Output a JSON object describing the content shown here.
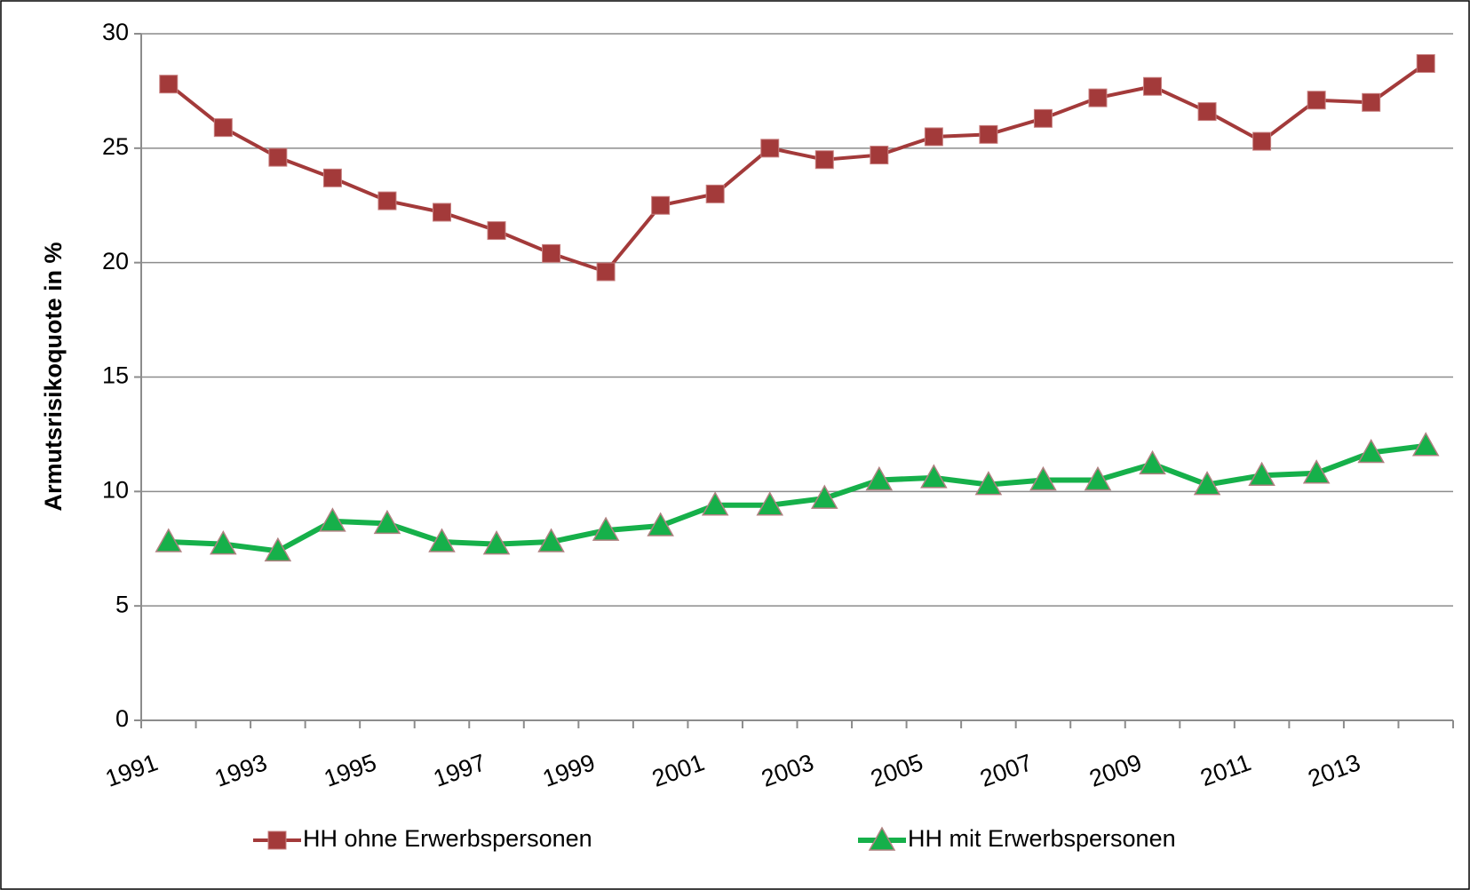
{
  "chart_data": {
    "type": "line",
    "ylabel": "Armutsrisikoquote in %",
    "categories": [
      "1991",
      null,
      "1993",
      null,
      "1995",
      null,
      "1997",
      null,
      "1999",
      null,
      "2001",
      null,
      "2003",
      null,
      "2005",
      null,
      "2007",
      null,
      "2009",
      null,
      "2011",
      null,
      "2013",
      null
    ],
    "series": [
      {
        "name": "HH ohne Erwerbspersonen",
        "color": "#a33a3a",
        "marker": "square",
        "values": [
          27.8,
          25.9,
          24.6,
          23.7,
          22.7,
          22.2,
          21.4,
          20.4,
          19.6,
          22.5,
          23.0,
          25.0,
          24.5,
          24.7,
          25.5,
          25.6,
          26.3,
          27.2,
          27.7,
          26.6,
          25.3,
          27.1,
          27.0,
          28.7
        ]
      },
      {
        "name": "HH mit Erwerbspersonen",
        "color": "#16b04a",
        "marker": "triangle",
        "values": [
          7.8,
          7.7,
          7.4,
          8.7,
          8.6,
          7.8,
          7.7,
          7.8,
          8.3,
          8.5,
          9.4,
          9.4,
          9.7,
          10.5,
          10.6,
          10.3,
          10.5,
          10.5,
          11.2,
          10.3,
          10.7,
          10.8,
          11.7,
          12.0
        ]
      }
    ],
    "ylim": [
      0,
      30
    ],
    "yticks": [
      0,
      5,
      10,
      15,
      20,
      25,
      30
    ],
    "grid": true,
    "legend": "bottom"
  }
}
